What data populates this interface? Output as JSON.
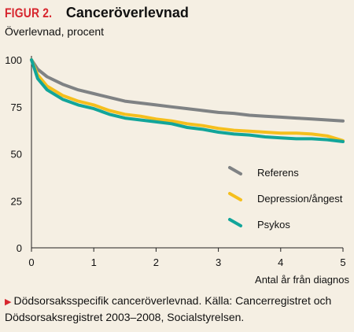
{
  "header": {
    "figure_label": "FIGUR 2.",
    "title": "Canceröverlevnad",
    "subtitle": "Överlevnad, procent"
  },
  "footer": {
    "caption": "Dödsorsaksspecifik canceröverlevnad. Källa: Cancerregistret och Dödsorsaksregistret 2003–2008, Socialstyrelsen."
  },
  "chart_data": {
    "type": "line",
    "xlabel": "Antal år från diagnos",
    "ylabel": "Överlevnad, procent",
    "xlim": [
      0,
      5
    ],
    "ylim": [
      0,
      100
    ],
    "xticks": [
      0,
      1,
      2,
      3,
      4,
      5
    ],
    "yticks": [
      0,
      25,
      50,
      75,
      100
    ],
    "grid": false,
    "legend_position": "right",
    "series": [
      {
        "name": "Referens",
        "color": "#7f8284",
        "x": [
          0,
          0.1,
          0.25,
          0.5,
          0.75,
          1,
          1.25,
          1.5,
          1.75,
          2,
          2.25,
          2.5,
          2.75,
          3,
          3.25,
          3.5,
          3.75,
          4,
          4.25,
          4.5,
          4.75,
          5
        ],
        "y": [
          100,
          95,
          91,
          87,
          84,
          82,
          80,
          78,
          77,
          76,
          75,
          74,
          73,
          72,
          71.5,
          70.5,
          70,
          69.5,
          69,
          68.5,
          68,
          67.5
        ]
      },
      {
        "name": "Depression/ångest",
        "color": "#f5bf1d",
        "x": [
          0,
          0.1,
          0.25,
          0.5,
          0.75,
          1,
          1.25,
          1.5,
          1.75,
          2,
          2.25,
          2.5,
          2.75,
          3,
          3.25,
          3.5,
          3.75,
          4,
          4.25,
          4.5,
          4.75,
          5
        ],
        "y": [
          100,
          92,
          86,
          81,
          78,
          76,
          73,
          71,
          70,
          68.5,
          67.5,
          66,
          65,
          63.5,
          62.5,
          62,
          61.5,
          61,
          61,
          60.5,
          59.5,
          57
        ]
      },
      {
        "name": "Psykos",
        "color": "#12a59a",
        "x": [
          0,
          0.1,
          0.25,
          0.5,
          0.75,
          1,
          1.25,
          1.5,
          1.75,
          2,
          2.25,
          2.5,
          2.75,
          3,
          3.25,
          3.5,
          3.75,
          4,
          4.25,
          4.5,
          4.75,
          5
        ],
        "y": [
          100,
          90,
          84,
          79,
          76,
          74,
          71,
          69,
          68,
          67,
          66,
          64,
          63,
          61.5,
          60.5,
          60,
          59,
          58.5,
          58,
          58,
          57.5,
          56.5
        ]
      }
    ]
  }
}
